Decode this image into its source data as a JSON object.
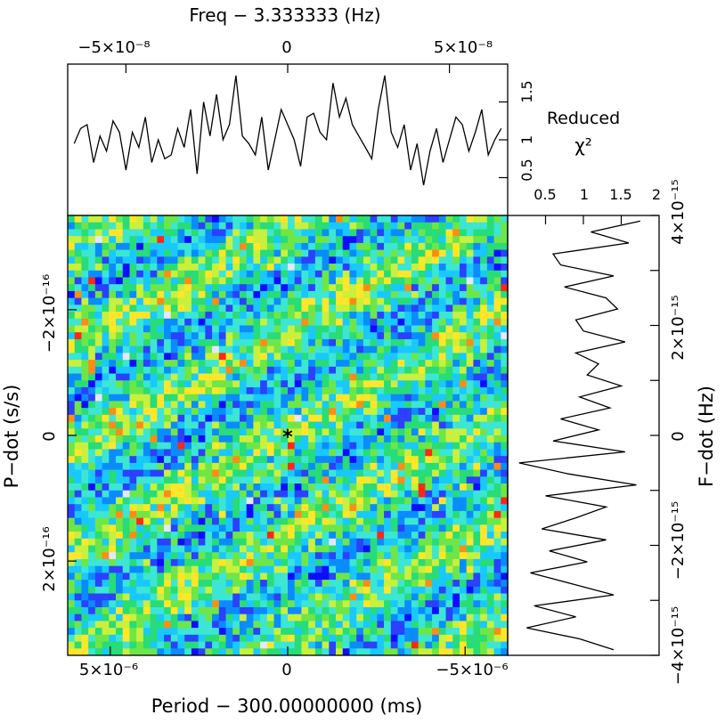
{
  "chart_data": [
    {
      "type": "line",
      "panel": "top-chi2-vs-freq",
      "title": "Freq − 3.333333 (Hz)",
      "top_ticks": [
        "−5×10⁻⁸",
        "0",
        "5×10⁻⁸"
      ],
      "ylabel": [
        "Reduced",
        "χ²"
      ],
      "yticks": [
        "0.5",
        "1",
        "1.5"
      ],
      "ylim": [
        0,
        2
      ],
      "xlim": [
        -6.8e-08,
        6.8e-08
      ],
      "x": [
        -6.6e-08,
        -6.4e-08,
        -6.2e-08,
        -6e-08,
        -5.8e-08,
        -5.6e-08,
        -5.4e-08,
        -5.2e-08,
        -5e-08,
        -4.8e-08,
        -4.6e-08,
        -4.4e-08,
        -4.2e-08,
        -4e-08,
        -3.8e-08,
        -3.6e-08,
        -3.4e-08,
        -3.2e-08,
        -3e-08,
        -2.8e-08,
        -2.6e-08,
        -2.4e-08,
        -2.2e-08,
        -2e-08,
        -1.8e-08,
        -1.6e-08,
        -1.4e-08,
        -1.2e-08,
        -1e-08,
        -8e-09,
        -6e-09,
        -4e-09,
        -2e-09,
        0,
        2e-09,
        4e-09,
        6e-09,
        8e-09,
        1e-08,
        1.2e-08,
        1.4e-08,
        1.6e-08,
        1.8e-08,
        2e-08,
        2.2e-08,
        2.4e-08,
        2.6e-08,
        2.8e-08,
        3e-08,
        3.2e-08,
        3.4e-08,
        3.6e-08,
        3.8e-08,
        4e-08,
        4.2e-08,
        4.4e-08,
        4.6e-08,
        4.8e-08,
        5e-08,
        5.2e-08,
        5.4e-08,
        5.6e-08,
        5.8e-08,
        6e-08,
        6.2e-08,
        6.4e-08,
        6.6e-08
      ],
      "values": [
        0.95,
        1.15,
        1.2,
        0.7,
        1.05,
        0.85,
        1.25,
        1.1,
        0.6,
        1.1,
        0.9,
        1.3,
        0.7,
        1.0,
        0.75,
        0.8,
        1.15,
        0.9,
        1.4,
        0.55,
        1.5,
        1.05,
        1.6,
        1.0,
        1.2,
        1.85,
        1.05,
        0.95,
        0.8,
        1.3,
        0.6,
        1.0,
        1.4,
        1.2,
        1.0,
        0.65,
        1.3,
        1.35,
        1.1,
        1.0,
        1.75,
        1.3,
        1.55,
        1.2,
        1.05,
        0.9,
        0.75,
        1.4,
        1.85,
        1.1,
        0.9,
        1.2,
        0.6,
        0.95,
        0.4,
        0.85,
        1.15,
        0.7,
        1.0,
        1.3,
        1.2,
        0.85,
        1.1,
        1.4,
        0.8,
        1.0,
        1.15
      ]
    },
    {
      "type": "heatmap",
      "panel": "main-ppdot-plane",
      "xlabel": "Period − 300.00000000 (ms)",
      "ylabel": "P−dot (s/s)",
      "xticks": [
        "5×10⁻⁶",
        "0",
        "−5×10⁻⁶"
      ],
      "yticks": [
        "−2×10⁻¹⁶",
        "0",
        "2×10⁻¹⁶"
      ],
      "xlim": [
        6.2e-06,
        -6.2e-06
      ],
      "ylim": [
        3.5e-16,
        -3.5e-16
      ],
      "grid_cells": [
        64,
        64
      ],
      "colormap": [
        "#0d0dff",
        "#2b41ff",
        "#0a8cff",
        "#19c8ff",
        "#3ce6d2",
        "#28dc78",
        "#6ee648",
        "#c8f03c",
        "#ffe628",
        "#ff8c14",
        "#ff2814",
        "#e6e6ff"
      ],
      "marker": {
        "symbol": "*",
        "x": 0,
        "y": 0
      }
    },
    {
      "type": "line",
      "panel": "right-chi2-vs-fdot",
      "xticks": [
        "0.5",
        "1",
        "1.5",
        "2"
      ],
      "xlim": [
        0,
        2
      ],
      "ylabel": "F−dot (Hz)",
      "yticks": [
        "−4×10⁻¹⁵",
        "−2×10⁻¹⁵",
        "0",
        "2×10⁻¹⁵",
        "4×10⁻¹⁵"
      ],
      "ylim": [
        -4e-15,
        4e-15
      ],
      "y": [
        3.9e-15,
        3.7e-15,
        3.5e-15,
        3.3e-15,
        3.1e-15,
        2.9e-15,
        2.7e-15,
        2.5e-15,
        2.3e-15,
        2.1e-15,
        1.9e-15,
        1.7e-15,
        1.5e-15,
        1.3e-15,
        1.1e-15,
        9e-16,
        7e-16,
        5e-16,
        3e-16,
        1e-16,
        -1e-16,
        -3e-16,
        -5e-16,
        -7e-16,
        -9e-16,
        -1.1e-15,
        -1.3e-15,
        -1.5e-15,
        -1.7e-15,
        -1.9e-15,
        -2.1e-15,
        -2.3e-15,
        -2.5e-15,
        -2.7e-15,
        -2.9e-15,
        -3.1e-15,
        -3.3e-15,
        -3.5e-15,
        -3.7e-15,
        -3.9e-15
      ],
      "values": [
        1.75,
        1.1,
        1.6,
        0.6,
        0.7,
        1.4,
        0.75,
        1.3,
        1.45,
        0.9,
        1.0,
        1.55,
        0.9,
        1.2,
        1.05,
        1.5,
        0.95,
        1.35,
        0.7,
        1.2,
        0.6,
        1.55,
        0.15,
        0.8,
        1.7,
        0.5,
        1.3,
        0.9,
        0.45,
        1.3,
        0.55,
        1.05,
        0.3,
        0.85,
        1.4,
        0.35,
        0.9,
        0.25,
        0.95,
        1.4
      ]
    }
  ]
}
